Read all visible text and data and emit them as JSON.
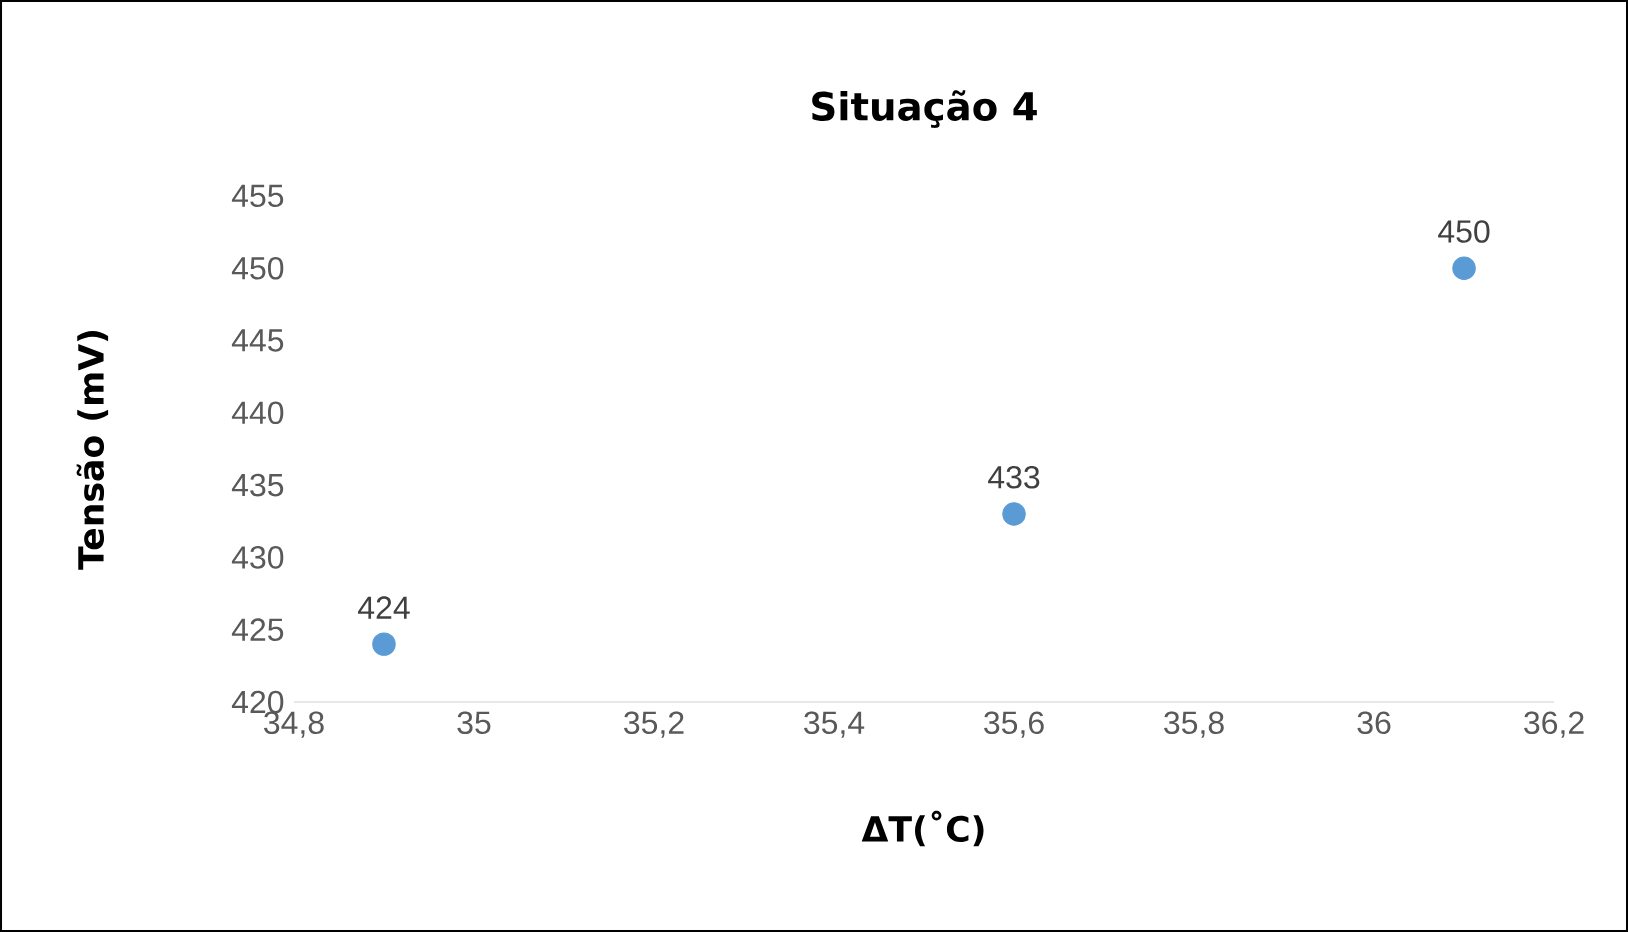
{
  "chart_data": {
    "type": "scatter",
    "title": "Situação 4",
    "xlabel": "ΔT(˚C)",
    "ylabel": "Tensão (mV)",
    "x": [
      34.9,
      35.6,
      36.1
    ],
    "series": [
      {
        "color": "#5b9bd5",
        "values": [
          424,
          433,
          450
        ]
      }
    ],
    "xlim": [
      34.8,
      36.2
    ],
    "xticks": [
      {
        "value": 34.8,
        "label": "34,8"
      },
      35,
      {
        "value": 35.2,
        "label": "35,2"
      },
      {
        "value": 35.4,
        "label": "35,4"
      },
      {
        "value": 35.6,
        "label": "35,6"
      },
      {
        "value": 35.8,
        "label": "35,8"
      },
      36,
      {
        "value": 36.2,
        "label": "36,2"
      }
    ],
    "ylim": [
      420,
      455
    ],
    "yticks": [
      420,
      425,
      430,
      435,
      440,
      445,
      450,
      455
    ],
    "data_labels": true,
    "marker": "circle",
    "grid": false
  }
}
